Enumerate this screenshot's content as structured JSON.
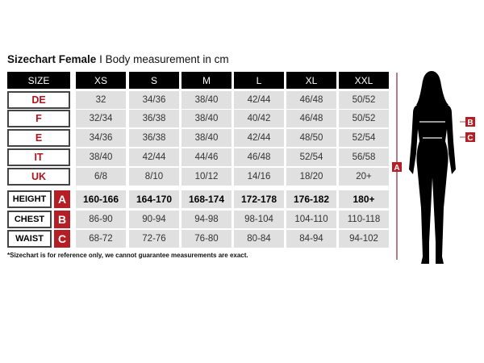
{
  "title": {
    "main": "Sizechart Female",
    "separator": "I",
    "sub": "Body measurement in cm"
  },
  "header": {
    "label": "SIZE",
    "sizes": [
      "XS",
      "S",
      "M",
      "L",
      "XL",
      "XXL"
    ]
  },
  "systems": [
    {
      "label": "DE",
      "values": [
        "32",
        "34/36",
        "38/40",
        "42/44",
        "46/48",
        "50/52"
      ]
    },
    {
      "label": "F",
      "values": [
        "32/34",
        "36/38",
        "38/40",
        "40/42",
        "46/48",
        "50/52"
      ]
    },
    {
      "label": "E",
      "values": [
        "34/36",
        "36/38",
        "38/40",
        "42/44",
        "48/50",
        "52/54"
      ]
    },
    {
      "label": "IT",
      "values": [
        "38/40",
        "42/44",
        "44/46",
        "46/48",
        "52/54",
        "56/58"
      ]
    },
    {
      "label": "UK",
      "values": [
        "6/8",
        "8/10",
        "10/12",
        "14/16",
        "18/20",
        "20+"
      ]
    }
  ],
  "measurements": [
    {
      "label": "HEIGHT",
      "letter": "A",
      "values": [
        "160-166",
        "164-170",
        "168-174",
        "172-178",
        "176-182",
        "180+"
      ]
    },
    {
      "label": "CHEST",
      "letter": "B",
      "values": [
        "86-90",
        "90-94",
        "94-98",
        "98-104",
        "104-110",
        "110-118"
      ]
    },
    {
      "label": "WAIST",
      "letter": "C",
      "values": [
        "68-72",
        "72-76",
        "76-80",
        "80-84",
        "84-94",
        "94-102"
      ]
    }
  ],
  "figure": {
    "markers": [
      "A",
      "B",
      "C"
    ]
  },
  "note": "*Sizechart is for reference only, we cannot guarantee measurements are exact.",
  "colors": {
    "accent": "#b51e24",
    "header": "#000000",
    "cell": "#e0e0e0"
  }
}
